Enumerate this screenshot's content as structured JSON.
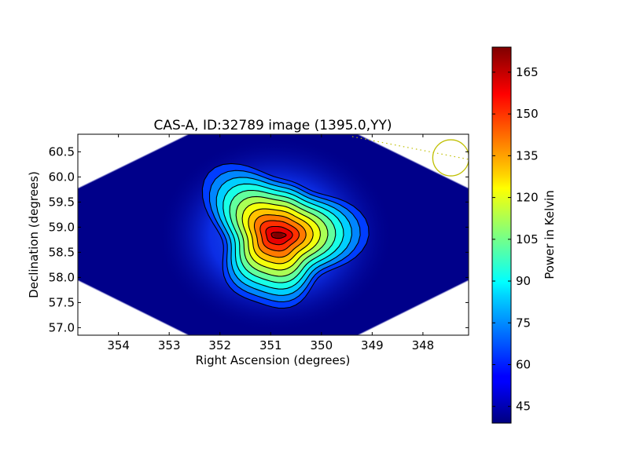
{
  "chart_data": {
    "type": "heatmap",
    "title": "CAS-A, ID:32789 image (1395.0,YY)",
    "xlabel": "Right Ascension (degrees)",
    "ylabel": "Declination (degrees)",
    "xlim": [
      354.8,
      347.1
    ],
    "ylim": [
      56.85,
      60.85
    ],
    "x_ticks": [
      354,
      353,
      352,
      351,
      350,
      349,
      348
    ],
    "y_ticks": [
      57.0,
      57.5,
      58.0,
      58.5,
      59.0,
      59.5,
      60.0,
      60.5
    ],
    "colorbar": {
      "label": "Power in Kelvin",
      "range": [
        39,
        174
      ],
      "ticks": [
        45,
        60,
        75,
        90,
        105,
        120,
        135,
        150,
        165
      ],
      "colormap": "jet"
    },
    "peak": {
      "ra": 350.85,
      "dec": 58.84,
      "value": 174
    },
    "background_value": 42,
    "contours": {
      "color": "#000000",
      "count": 12
    },
    "beam_marker": {
      "ra": 347.45,
      "dec": 60.38,
      "color": "#bfbf00",
      "style": "circle"
    }
  }
}
